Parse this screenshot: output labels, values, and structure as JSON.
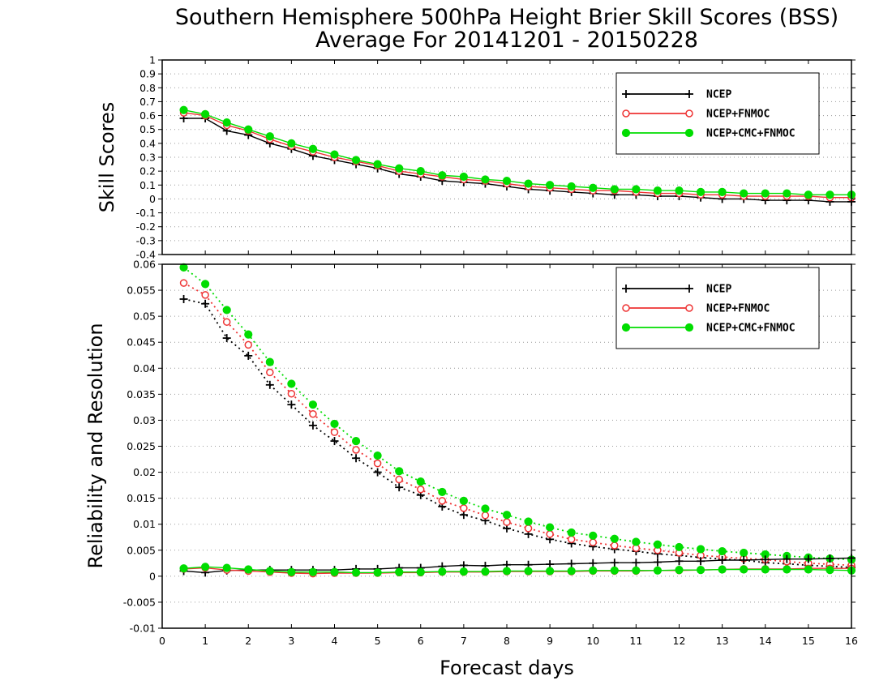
{
  "title_line1": "Southern Hemisphere 500hPa Height Brier Skill Scores (BSS)",
  "title_line2": "Average For 20141201 - 20150228",
  "xlabel": "Forecast days",
  "colors": {
    "NCEP": "#000000",
    "NCEP+FNMOC": "#ee3333",
    "NCEP+CMC+FNMOC": "#00dd00"
  },
  "chart_data": [
    {
      "type": "line",
      "ylabel": "Skill Scores",
      "xlim": [
        0,
        16
      ],
      "ylim": [
        -0.4,
        1
      ],
      "xticks": [
        0,
        1,
        2,
        3,
        4,
        5,
        6,
        7,
        8,
        9,
        10,
        11,
        12,
        13,
        14,
        15,
        16
      ],
      "yticks": [
        -0.4,
        -0.3,
        -0.2,
        -0.1,
        0,
        0.1,
        0.2,
        0.3,
        0.4,
        0.5,
        0.6,
        0.7,
        0.8,
        0.9,
        1
      ],
      "ytick_labels": [
        "-0.4",
        "-0.3",
        "-0.2",
        "-0.1",
        "0",
        "0.1",
        "0.2",
        "0.3",
        "0.4",
        "0.5",
        "0.6",
        "0.7",
        "0.8",
        "0.9",
        "1"
      ],
      "grid": true,
      "legend_position": "top-right",
      "x": [
        0.5,
        1,
        1.5,
        2,
        2.5,
        3,
        3.5,
        4,
        4.5,
        5,
        5.5,
        6,
        6.5,
        7,
        7.5,
        8,
        8.5,
        9,
        9.5,
        10,
        10.5,
        11,
        11.5,
        12,
        12.5,
        13,
        13.5,
        14,
        14.5,
        15,
        15.5,
        16
      ],
      "series": [
        {
          "name": "NCEP",
          "color": "#000000",
          "marker": "plus",
          "values": [
            0.58,
            0.58,
            0.49,
            0.46,
            0.4,
            0.36,
            0.31,
            0.28,
            0.25,
            0.22,
            0.18,
            0.16,
            0.13,
            0.12,
            0.11,
            0.09,
            0.07,
            0.06,
            0.05,
            0.04,
            0.03,
            0.03,
            0.02,
            0.02,
            0.01,
            0.0,
            0.0,
            -0.01,
            -0.01,
            -0.01,
            -0.02,
            -0.02
          ]
        },
        {
          "name": "NCEP+FNMOC",
          "color": "#ee3333",
          "marker": "open-circle",
          "values": [
            0.62,
            0.6,
            0.53,
            0.49,
            0.43,
            0.38,
            0.34,
            0.3,
            0.27,
            0.24,
            0.2,
            0.18,
            0.16,
            0.14,
            0.13,
            0.11,
            0.09,
            0.08,
            0.07,
            0.06,
            0.06,
            0.05,
            0.04,
            0.04,
            0.03,
            0.03,
            0.02,
            0.02,
            0.02,
            0.02,
            0.01,
            0.01
          ]
        },
        {
          "name": "NCEP+CMC+FNMOC",
          "color": "#00dd00",
          "marker": "filled-circle",
          "values": [
            0.64,
            0.61,
            0.55,
            0.5,
            0.45,
            0.4,
            0.36,
            0.32,
            0.28,
            0.25,
            0.22,
            0.2,
            0.17,
            0.16,
            0.14,
            0.13,
            0.11,
            0.1,
            0.09,
            0.08,
            0.07,
            0.07,
            0.06,
            0.06,
            0.05,
            0.05,
            0.04,
            0.04,
            0.04,
            0.03,
            0.03,
            0.03
          ]
        }
      ]
    },
    {
      "type": "line",
      "ylabel": "Reliability and Resolution",
      "xlim": [
        0,
        16
      ],
      "ylim": [
        -0.01,
        0.06
      ],
      "xticks": [
        0,
        1,
        2,
        3,
        4,
        5,
        6,
        7,
        8,
        9,
        10,
        11,
        12,
        13,
        14,
        15,
        16
      ],
      "yticks": [
        -0.01,
        -0.005,
        0,
        0.005,
        0.01,
        0.015,
        0.02,
        0.025,
        0.03,
        0.035,
        0.04,
        0.045,
        0.05,
        0.055,
        0.06
      ],
      "ytick_labels": [
        "-0.01",
        "-0.005",
        "0",
        "0.005",
        "0.01",
        "0.015",
        "0.02",
        "0.025",
        "0.03",
        "0.035",
        "0.04",
        "0.045",
        "0.05",
        "0.055",
        "0.06"
      ],
      "grid": true,
      "legend_position": "top-right",
      "x": [
        0.5,
        1,
        1.5,
        2,
        2.5,
        3,
        3.5,
        4,
        4.5,
        5,
        5.5,
        6,
        6.5,
        7,
        7.5,
        8,
        8.5,
        9,
        9.5,
        10,
        10.5,
        11,
        11.5,
        12,
        12.5,
        13,
        13.5,
        14,
        14.5,
        15,
        15.5,
        16
      ],
      "series": [
        {
          "name": "NCEP",
          "color": "#000000",
          "marker": "plus",
          "component": "resolution",
          "line": "dotted",
          "values": [
            0.0533,
            0.0524,
            0.0458,
            0.0424,
            0.0368,
            0.033,
            0.029,
            0.026,
            0.0227,
            0.02,
            0.0171,
            0.0156,
            0.0134,
            0.0118,
            0.0107,
            0.0092,
            0.0081,
            0.0071,
            0.0063,
            0.0057,
            0.0052,
            0.0048,
            0.0043,
            0.004,
            0.0036,
            0.0033,
            0.0031,
            0.0026,
            0.0024,
            0.0021,
            0.0019,
            0.0017
          ]
        },
        {
          "name": "NCEP+FNMOC",
          "color": "#ee3333",
          "marker": "open-circle",
          "component": "resolution",
          "line": "dotted",
          "values": [
            0.0564,
            0.0541,
            0.0489,
            0.0445,
            0.0392,
            0.0351,
            0.0312,
            0.0277,
            0.0243,
            0.0217,
            0.0186,
            0.0167,
            0.0145,
            0.0131,
            0.0117,
            0.0104,
            0.0092,
            0.0081,
            0.0071,
            0.0065,
            0.0059,
            0.0054,
            0.005,
            0.0045,
            0.004,
            0.0037,
            0.0034,
            0.0032,
            0.0028,
            0.0025,
            0.0023,
            0.0021
          ]
        },
        {
          "name": "NCEP+CMC+FNMOC",
          "color": "#00dd00",
          "marker": "filled-circle",
          "component": "resolution",
          "line": "dotted",
          "values": [
            0.0594,
            0.0562,
            0.0512,
            0.0465,
            0.0412,
            0.037,
            0.033,
            0.0293,
            0.026,
            0.0232,
            0.0202,
            0.0182,
            0.0162,
            0.0145,
            0.013,
            0.0118,
            0.0105,
            0.0094,
            0.0084,
            0.0078,
            0.0072,
            0.0066,
            0.0061,
            0.0056,
            0.0052,
            0.0048,
            0.0045,
            0.0042,
            0.0039,
            0.0036,
            0.0034,
            0.0032
          ]
        },
        {
          "name": "NCEP",
          "color": "#000000",
          "marker": "plus",
          "component": "reliability",
          "line": "solid",
          "values": [
            0.001,
            0.0007,
            0.0011,
            0.0012,
            0.0012,
            0.0012,
            0.0012,
            0.0012,
            0.0014,
            0.0014,
            0.0016,
            0.0016,
            0.0019,
            0.0021,
            0.002,
            0.0022,
            0.0022,
            0.0023,
            0.0024,
            0.0025,
            0.0026,
            0.0026,
            0.0027,
            0.0029,
            0.0029,
            0.0031,
            0.0031,
            0.0032,
            0.0033,
            0.0033,
            0.0034,
            0.0035
          ]
        },
        {
          "name": "NCEP+FNMOC",
          "color": "#ee3333",
          "marker": "open-circle",
          "component": "reliability",
          "line": "solid",
          "values": [
            0.0014,
            0.0016,
            0.0012,
            0.001,
            0.0008,
            0.0006,
            0.0005,
            0.0006,
            0.0006,
            0.0006,
            0.0007,
            0.0007,
            0.0008,
            0.0008,
            0.0008,
            0.0009,
            0.0009,
            0.0009,
            0.0009,
            0.001,
            0.001,
            0.001,
            0.0011,
            0.0011,
            0.0012,
            0.0013,
            0.0014,
            0.0014,
            0.0014,
            0.0015,
            0.0015,
            0.0015
          ]
        },
        {
          "name": "NCEP+CMC+FNMOC",
          "color": "#00dd00",
          "marker": "filled-circle",
          "component": "reliability",
          "line": "solid",
          "values": [
            0.0015,
            0.0018,
            0.0016,
            0.0013,
            0.001,
            0.0008,
            0.0008,
            0.0008,
            0.0007,
            0.0007,
            0.0008,
            0.0008,
            0.0009,
            0.0009,
            0.0009,
            0.001,
            0.001,
            0.001,
            0.001,
            0.0011,
            0.0011,
            0.0011,
            0.0011,
            0.0012,
            0.0012,
            0.0013,
            0.0013,
            0.0013,
            0.0013,
            0.0013,
            0.0012,
            0.0011
          ]
        }
      ]
    }
  ],
  "legends": [
    {
      "items": [
        {
          "label": "NCEP",
          "color": "#000000",
          "marker": "plus"
        },
        {
          "label": "NCEP+FNMOC",
          "color": "#ee3333",
          "marker": "open-circle"
        },
        {
          "label": "NCEP+CMC+FNMOC",
          "color": "#00dd00",
          "marker": "filled-circle"
        }
      ]
    },
    {
      "items": [
        {
          "label": "NCEP",
          "color": "#000000",
          "marker": "plus"
        },
        {
          "label": "NCEP+FNMOC",
          "color": "#ee3333",
          "marker": "open-circle"
        },
        {
          "label": "NCEP+CMC+FNMOC",
          "color": "#00dd00",
          "marker": "filled-circle"
        }
      ]
    }
  ]
}
